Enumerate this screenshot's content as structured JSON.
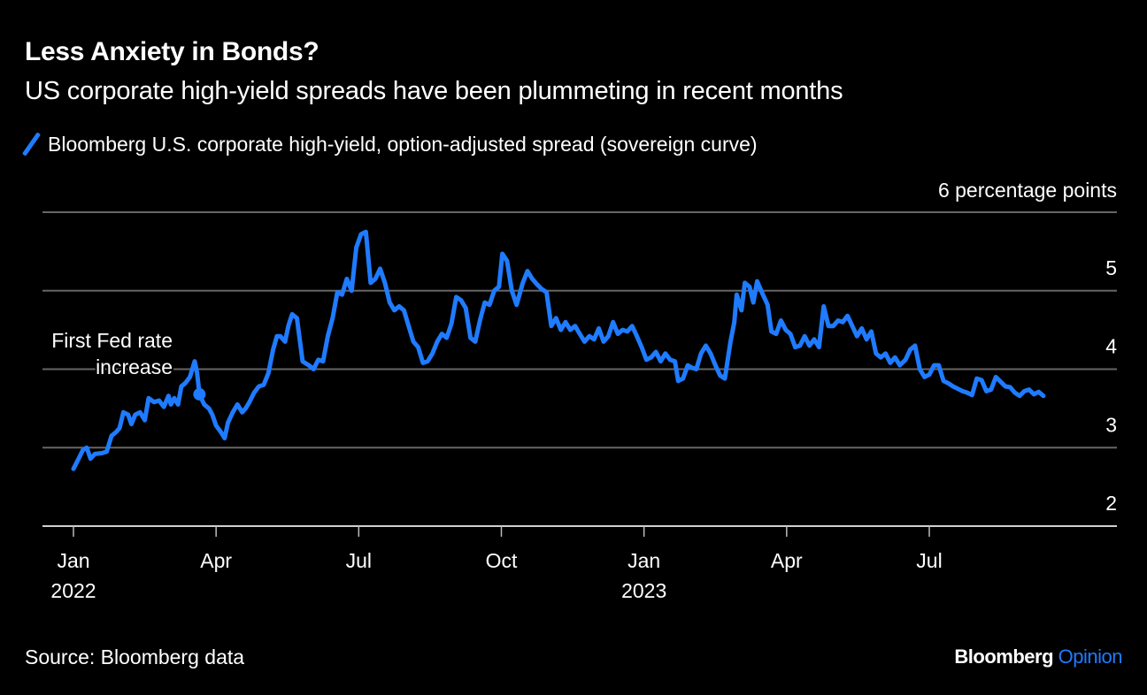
{
  "header": {
    "title": "Less Anxiety in Bonds?",
    "subtitle": "US corporate high-yield spreads have been plummeting in recent months"
  },
  "footer": {
    "source": "Source: Bloomberg data",
    "brand_main": "Bloomberg",
    "brand_accent": "Opinion"
  },
  "colors": {
    "background": "#000000",
    "line": "#1f7bff",
    "grid": "#666666",
    "text": "#ffffff"
  },
  "chart_data": {
    "type": "line",
    "title": "Less Anxiety in Bonds?",
    "subtitle": "US corporate high-yield spreads have been plummeting in recent months",
    "unit_label": "6 percentage points",
    "xlabel": "",
    "ylabel": "percentage points",
    "ylim": [
      2,
      6
    ],
    "yticks": [
      {
        "value": 6,
        "label": "6 percentage points"
      },
      {
        "value": 5,
        "label": "5"
      },
      {
        "value": 4,
        "label": "4"
      },
      {
        "value": 3,
        "label": "3"
      },
      {
        "value": 2,
        "label": "2"
      }
    ],
    "grid": true,
    "legend_position": "top-left",
    "x_axis": {
      "unit": "months since Jan 2022",
      "range": [
        0,
        22
      ],
      "ticks": [
        {
          "value": 0,
          "label": "Jan",
          "sublabel": "2022"
        },
        {
          "value": 3,
          "label": "Apr",
          "sublabel": ""
        },
        {
          "value": 6,
          "label": "Jul",
          "sublabel": ""
        },
        {
          "value": 9,
          "label": "Oct",
          "sublabel": ""
        },
        {
          "value": 12,
          "label": "Jan",
          "sublabel": "2023"
        },
        {
          "value": 15,
          "label": "Apr",
          "sublabel": ""
        },
        {
          "value": 18,
          "label": "Jul",
          "sublabel": ""
        }
      ]
    },
    "series": [
      {
        "name": "Bloomberg U.S. corporate high-yield, option-adjusted spread (sovereign curve)",
        "points": [
          [
            0.0,
            2.73
          ],
          [
            0.1,
            2.85
          ],
          [
            0.2,
            2.97
          ],
          [
            0.28,
            3.0
          ],
          [
            0.36,
            2.86
          ],
          [
            0.45,
            2.92
          ],
          [
            0.6,
            2.93
          ],
          [
            0.7,
            2.95
          ],
          [
            0.8,
            3.15
          ],
          [
            0.9,
            3.2
          ],
          [
            0.97,
            3.25
          ],
          [
            1.05,
            3.45
          ],
          [
            1.15,
            3.42
          ],
          [
            1.22,
            3.3
          ],
          [
            1.3,
            3.42
          ],
          [
            1.4,
            3.45
          ],
          [
            1.5,
            3.35
          ],
          [
            1.58,
            3.63
          ],
          [
            1.7,
            3.58
          ],
          [
            1.8,
            3.6
          ],
          [
            1.9,
            3.52
          ],
          [
            2.0,
            3.66
          ],
          [
            2.05,
            3.55
          ],
          [
            2.12,
            3.63
          ],
          [
            2.2,
            3.55
          ],
          [
            2.27,
            3.78
          ],
          [
            2.35,
            3.82
          ],
          [
            2.45,
            3.9
          ],
          [
            2.55,
            4.1
          ],
          [
            2.6,
            3.95
          ],
          [
            2.65,
            3.68
          ],
          [
            2.75,
            3.55
          ],
          [
            2.85,
            3.5
          ],
          [
            2.92,
            3.42
          ],
          [
            3.0,
            3.28
          ],
          [
            3.1,
            3.2
          ],
          [
            3.18,
            3.12
          ],
          [
            3.25,
            3.32
          ],
          [
            3.35,
            3.45
          ],
          [
            3.45,
            3.55
          ],
          [
            3.55,
            3.45
          ],
          [
            3.62,
            3.5
          ],
          [
            3.7,
            3.58
          ],
          [
            3.8,
            3.7
          ],
          [
            3.9,
            3.78
          ],
          [
            4.0,
            3.8
          ],
          [
            4.1,
            3.95
          ],
          [
            4.2,
            4.25
          ],
          [
            4.28,
            4.42
          ],
          [
            4.35,
            4.42
          ],
          [
            4.45,
            4.35
          ],
          [
            4.52,
            4.55
          ],
          [
            4.6,
            4.7
          ],
          [
            4.7,
            4.65
          ],
          [
            4.82,
            4.1
          ],
          [
            4.95,
            4.05
          ],
          [
            5.05,
            4.0
          ],
          [
            5.15,
            4.12
          ],
          [
            5.25,
            4.1
          ],
          [
            5.35,
            4.42
          ],
          [
            5.45,
            4.65
          ],
          [
            5.55,
            4.98
          ],
          [
            5.65,
            4.95
          ],
          [
            5.75,
            5.15
          ],
          [
            5.85,
            5.0
          ],
          [
            5.95,
            5.55
          ],
          [
            6.05,
            5.72
          ],
          [
            6.15,
            5.75
          ],
          [
            6.25,
            5.1
          ],
          [
            6.35,
            5.15
          ],
          [
            6.45,
            5.28
          ],
          [
            6.55,
            5.1
          ],
          [
            6.65,
            4.85
          ],
          [
            6.75,
            4.75
          ],
          [
            6.85,
            4.8
          ],
          [
            6.95,
            4.75
          ],
          [
            7.05,
            4.55
          ],
          [
            7.15,
            4.35
          ],
          [
            7.25,
            4.28
          ],
          [
            7.35,
            4.08
          ],
          [
            7.45,
            4.1
          ],
          [
            7.55,
            4.2
          ],
          [
            7.65,
            4.35
          ],
          [
            7.75,
            4.45
          ],
          [
            7.85,
            4.4
          ],
          [
            7.95,
            4.58
          ],
          [
            8.05,
            4.92
          ],
          [
            8.15,
            4.88
          ],
          [
            8.25,
            4.78
          ],
          [
            8.35,
            4.4
          ],
          [
            8.45,
            4.35
          ],
          [
            8.55,
            4.62
          ],
          [
            8.65,
            4.85
          ],
          [
            8.75,
            4.82
          ],
          [
            8.85,
            5.0
          ],
          [
            8.95,
            5.05
          ],
          [
            9.02,
            5.47
          ],
          [
            9.12,
            5.38
          ],
          [
            9.22,
            5.0
          ],
          [
            9.32,
            4.82
          ],
          [
            9.45,
            5.1
          ],
          [
            9.55,
            5.25
          ],
          [
            9.65,
            5.15
          ],
          [
            9.75,
            5.08
          ],
          [
            9.85,
            5.02
          ],
          [
            9.95,
            4.98
          ],
          [
            10.05,
            4.55
          ],
          [
            10.15,
            4.65
          ],
          [
            10.25,
            4.5
          ],
          [
            10.35,
            4.6
          ],
          [
            10.45,
            4.5
          ],
          [
            10.55,
            4.55
          ],
          [
            10.65,
            4.45
          ],
          [
            10.75,
            4.35
          ],
          [
            10.85,
            4.42
          ],
          [
            10.95,
            4.38
          ],
          [
            11.05,
            4.52
          ],
          [
            11.15,
            4.35
          ],
          [
            11.25,
            4.42
          ],
          [
            11.35,
            4.6
          ],
          [
            11.45,
            4.45
          ],
          [
            11.55,
            4.5
          ],
          [
            11.65,
            4.48
          ],
          [
            11.75,
            4.55
          ],
          [
            11.85,
            4.42
          ],
          [
            11.95,
            4.28
          ],
          [
            12.05,
            4.12
          ],
          [
            12.15,
            4.15
          ],
          [
            12.25,
            4.22
          ],
          [
            12.35,
            4.1
          ],
          [
            12.45,
            4.2
          ],
          [
            12.55,
            4.12
          ],
          [
            12.65,
            4.1
          ],
          [
            12.72,
            3.85
          ],
          [
            12.82,
            3.88
          ],
          [
            12.92,
            4.05
          ],
          [
            13.0,
            4.02
          ],
          [
            13.1,
            4.0
          ],
          [
            13.2,
            4.2
          ],
          [
            13.3,
            4.3
          ],
          [
            13.4,
            4.2
          ],
          [
            13.5,
            4.05
          ],
          [
            13.6,
            3.92
          ],
          [
            13.7,
            3.88
          ],
          [
            13.82,
            4.35
          ],
          [
            13.9,
            4.6
          ],
          [
            13.95,
            4.95
          ],
          [
            14.05,
            4.75
          ],
          [
            14.12,
            5.1
          ],
          [
            14.22,
            5.05
          ],
          [
            14.3,
            4.85
          ],
          [
            14.38,
            5.12
          ],
          [
            14.5,
            4.95
          ],
          [
            14.6,
            4.82
          ],
          [
            14.68,
            4.48
          ],
          [
            14.78,
            4.45
          ],
          [
            14.88,
            4.62
          ],
          [
            14.98,
            4.5
          ],
          [
            15.08,
            4.45
          ],
          [
            15.18,
            4.28
          ],
          [
            15.28,
            4.3
          ],
          [
            15.38,
            4.42
          ],
          [
            15.48,
            4.3
          ],
          [
            15.58,
            4.38
          ],
          [
            15.68,
            4.28
          ],
          [
            15.78,
            4.8
          ],
          [
            15.88,
            4.55
          ],
          [
            15.98,
            4.55
          ],
          [
            16.08,
            4.62
          ],
          [
            16.18,
            4.6
          ],
          [
            16.28,
            4.68
          ],
          [
            16.38,
            4.55
          ],
          [
            16.48,
            4.42
          ],
          [
            16.58,
            4.52
          ],
          [
            16.68,
            4.38
          ],
          [
            16.78,
            4.48
          ],
          [
            16.88,
            4.2
          ],
          [
            16.98,
            4.15
          ],
          [
            17.08,
            4.2
          ],
          [
            17.18,
            4.08
          ],
          [
            17.28,
            4.15
          ],
          [
            17.38,
            4.05
          ],
          [
            17.5,
            4.12
          ],
          [
            17.6,
            4.25
          ],
          [
            17.7,
            4.3
          ],
          [
            17.8,
            4.0
          ],
          [
            17.9,
            3.9
          ],
          [
            18.0,
            3.93
          ],
          [
            18.1,
            4.05
          ],
          [
            18.2,
            4.05
          ],
          [
            18.3,
            3.85
          ],
          [
            18.4,
            3.82
          ],
          [
            18.5,
            3.78
          ],
          [
            18.6,
            3.75
          ],
          [
            18.7,
            3.72
          ],
          [
            18.8,
            3.7
          ],
          [
            18.9,
            3.67
          ],
          [
            19.0,
            3.88
          ],
          [
            19.1,
            3.86
          ],
          [
            19.2,
            3.72
          ],
          [
            19.3,
            3.74
          ],
          [
            19.4,
            3.9
          ],
          [
            19.5,
            3.84
          ],
          [
            19.6,
            3.78
          ],
          [
            19.7,
            3.77
          ],
          [
            19.8,
            3.7
          ],
          [
            19.9,
            3.66
          ],
          [
            20.0,
            3.72
          ],
          [
            20.1,
            3.74
          ],
          [
            20.2,
            3.68
          ],
          [
            20.3,
            3.71
          ],
          [
            20.4,
            3.66
          ]
        ]
      }
    ],
    "annotations": [
      {
        "text_line1": "First Fed rate",
        "text_line2": "increase",
        "x": 2.65,
        "y": 3.68,
        "marker": "dot"
      }
    ]
  }
}
